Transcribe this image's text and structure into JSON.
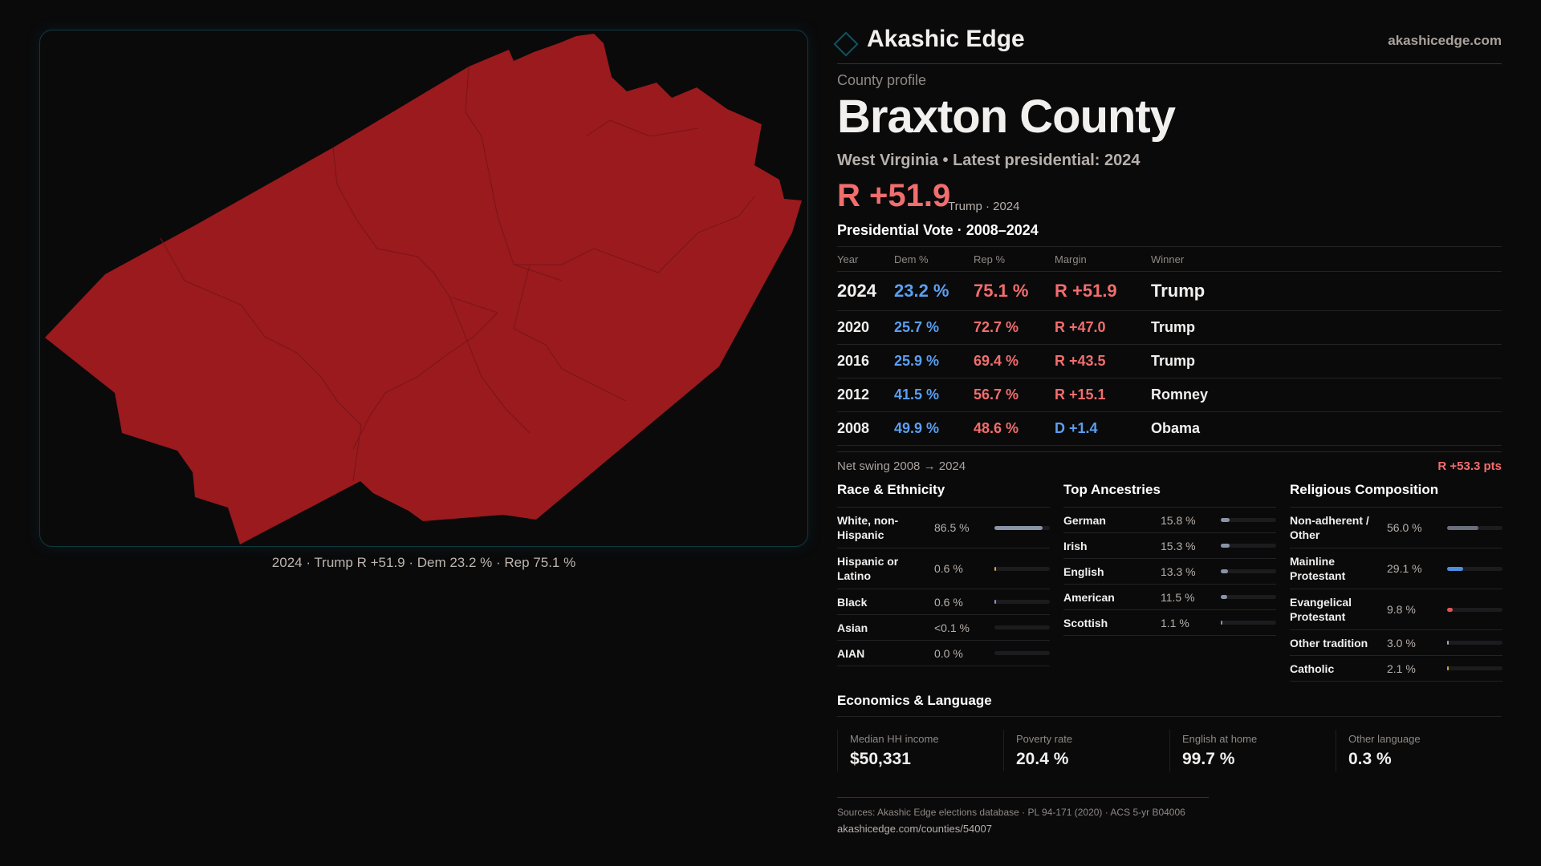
{
  "brand": {
    "name": "Akashic Edge",
    "site": "akashicedge.com"
  },
  "profile": {
    "kicker": "County profile",
    "title": "Braxton County",
    "subtitle": "West Virginia • Latest presidential: 2024",
    "margin": "R +51.9",
    "margin_note": "Trump · 2024"
  },
  "map": {
    "caption": "2024 · Trump R +51.9 · Dem 23.2 % · Rep 75.1 %",
    "fill_color": "#9a1a1e"
  },
  "vote": {
    "title": "Presidential Vote · 2008–2024",
    "headers": [
      "Year",
      "Dem %",
      "Rep %",
      "Margin",
      "Winner"
    ],
    "rows": [
      {
        "year": "2024",
        "dem": "23.2 %",
        "rep": "75.1 %",
        "margin": "R +51.9",
        "party": "R",
        "winner": "Trump"
      },
      {
        "year": "2020",
        "dem": "25.7 %",
        "rep": "72.7 %",
        "margin": "R +47.0",
        "party": "R",
        "winner": "Trump"
      },
      {
        "year": "2016",
        "dem": "25.9 %",
        "rep": "69.4 %",
        "margin": "R +43.5",
        "party": "R",
        "winner": "Trump"
      },
      {
        "year": "2012",
        "dem": "41.5 %",
        "rep": "56.7 %",
        "margin": "R +15.1",
        "party": "R",
        "winner": "Romney"
      },
      {
        "year": "2008",
        "dem": "49.9 %",
        "rep": "48.6 %",
        "margin": "D +1.4",
        "party": "D",
        "winner": "Obama"
      }
    ],
    "swing_label": "Net swing 2008 → 2024",
    "swing_value": "R +53.3 pts"
  },
  "race": {
    "title": "Race & Ethnicity",
    "items": [
      {
        "label": "White, non-Hispanic",
        "value": "86.5 %",
        "pct": 86.5,
        "color": "#8a94a6"
      },
      {
        "label": "Hispanic or Latino",
        "value": "0.6 %",
        "pct": 0.6,
        "color": "#e0a030"
      },
      {
        "label": "Black",
        "value": "0.6 %",
        "pct": 0.6,
        "color": "#9a8ad8"
      },
      {
        "label": "Asian",
        "value": "<0.1 %",
        "pct": 0,
        "color": "#8a94a6"
      },
      {
        "label": "AIAN",
        "value": "0.0 %",
        "pct": 0,
        "color": "#8a94a6"
      }
    ]
  },
  "ancestry": {
    "title": "Top Ancestries",
    "items": [
      {
        "label": "German",
        "value": "15.8 %",
        "pct": 15.8,
        "color": "#8a94a6"
      },
      {
        "label": "Irish",
        "value": "15.3 %",
        "pct": 15.3,
        "color": "#8a94a6"
      },
      {
        "label": "English",
        "value": "13.3 %",
        "pct": 13.3,
        "color": "#8a94a6"
      },
      {
        "label": "American",
        "value": "11.5 %",
        "pct": 11.5,
        "color": "#8a94a6"
      },
      {
        "label": "Scottish",
        "value": "1.1 %",
        "pct": 1.1,
        "color": "#8a94a6"
      }
    ]
  },
  "religion": {
    "title": "Religious Composition",
    "items": [
      {
        "label": "Non-adherent / Other",
        "value": "56.0 %",
        "pct": 56.0,
        "color": "#6b6f7a"
      },
      {
        "label": "Mainline Protestant",
        "value": "29.1 %",
        "pct": 29.1,
        "color": "#4a8fe0"
      },
      {
        "label": "Evangelical Protestant",
        "value": "9.8 %",
        "pct": 9.8,
        "color": "#e05555"
      },
      {
        "label": "Other tradition",
        "value": "3.0 %",
        "pct": 3.0,
        "color": "#a0a8b8"
      },
      {
        "label": "Catholic",
        "value": "2.1 %",
        "pct": 2.1,
        "color": "#e0a030"
      }
    ]
  },
  "econ": {
    "title": "Economics & Language",
    "cards": [
      {
        "label": "Median HH income",
        "value": "$50,331"
      },
      {
        "label": "Poverty rate",
        "value": "20.4 %"
      },
      {
        "label": "English at home",
        "value": "99.7 %"
      },
      {
        "label": "Other language",
        "value": "0.3 %"
      }
    ]
  },
  "footer": {
    "sources": "Sources: Akashic Edge elections database · PL 94-171 (2020) · ACS 5-yr B04006",
    "url": "akashicedge.com/counties/54007"
  }
}
